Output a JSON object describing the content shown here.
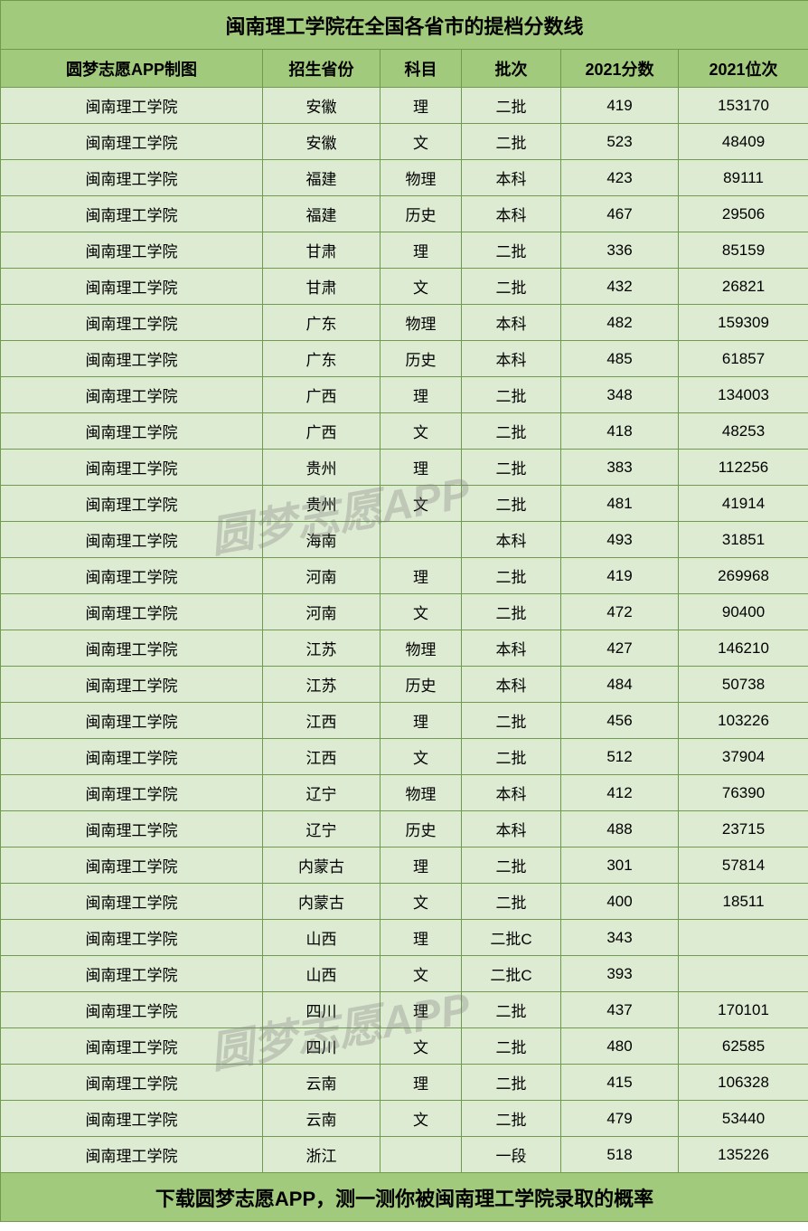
{
  "title": "闽南理工学院在全国各省市的提档分数线",
  "footer": "下载圆梦志愿APP，测一测你被闽南理工学院录取的概率",
  "watermark": "圆梦志愿APP",
  "colors": {
    "header_bg": "#a1ca7c",
    "row_bg": "#deebd3",
    "border": "#6f9b4f",
    "text": "#000000",
    "watermark": "rgba(120,120,120,0.30)"
  },
  "columns": [
    "圆梦志愿APP制图",
    "招生省份",
    "科目",
    "批次",
    "2021分数",
    "2021位次"
  ],
  "rows": [
    [
      "闽南理工学院",
      "安徽",
      "理",
      "二批",
      "419",
      "153170"
    ],
    [
      "闽南理工学院",
      "安徽",
      "文",
      "二批",
      "523",
      "48409"
    ],
    [
      "闽南理工学院",
      "福建",
      "物理",
      "本科",
      "423",
      "89111"
    ],
    [
      "闽南理工学院",
      "福建",
      "历史",
      "本科",
      "467",
      "29506"
    ],
    [
      "闽南理工学院",
      "甘肃",
      "理",
      "二批",
      "336",
      "85159"
    ],
    [
      "闽南理工学院",
      "甘肃",
      "文",
      "二批",
      "432",
      "26821"
    ],
    [
      "闽南理工学院",
      "广东",
      "物理",
      "本科",
      "482",
      "159309"
    ],
    [
      "闽南理工学院",
      "广东",
      "历史",
      "本科",
      "485",
      "61857"
    ],
    [
      "闽南理工学院",
      "广西",
      "理",
      "二批",
      "348",
      "134003"
    ],
    [
      "闽南理工学院",
      "广西",
      "文",
      "二批",
      "418",
      "48253"
    ],
    [
      "闽南理工学院",
      "贵州",
      "理",
      "二批",
      "383",
      "112256"
    ],
    [
      "闽南理工学院",
      "贵州",
      "文",
      "二批",
      "481",
      "41914"
    ],
    [
      "闽南理工学院",
      "海南",
      "",
      "本科",
      "493",
      "31851"
    ],
    [
      "闽南理工学院",
      "河南",
      "理",
      "二批",
      "419",
      "269968"
    ],
    [
      "闽南理工学院",
      "河南",
      "文",
      "二批",
      "472",
      "90400"
    ],
    [
      "闽南理工学院",
      "江苏",
      "物理",
      "本科",
      "427",
      "146210"
    ],
    [
      "闽南理工学院",
      "江苏",
      "历史",
      "本科",
      "484",
      "50738"
    ],
    [
      "闽南理工学院",
      "江西",
      "理",
      "二批",
      "456",
      "103226"
    ],
    [
      "闽南理工学院",
      "江西",
      "文",
      "二批",
      "512",
      "37904"
    ],
    [
      "闽南理工学院",
      "辽宁",
      "物理",
      "本科",
      "412",
      "76390"
    ],
    [
      "闽南理工学院",
      "辽宁",
      "历史",
      "本科",
      "488",
      "23715"
    ],
    [
      "闽南理工学院",
      "内蒙古",
      "理",
      "二批",
      "301",
      "57814"
    ],
    [
      "闽南理工学院",
      "内蒙古",
      "文",
      "二批",
      "400",
      "18511"
    ],
    [
      "闽南理工学院",
      "山西",
      "理",
      "二批C",
      "343",
      ""
    ],
    [
      "闽南理工学院",
      "山西",
      "文",
      "二批C",
      "393",
      ""
    ],
    [
      "闽南理工学院",
      "四川",
      "理",
      "二批",
      "437",
      "170101"
    ],
    [
      "闽南理工学院",
      "四川",
      "文",
      "二批",
      "480",
      "62585"
    ],
    [
      "闽南理工学院",
      "云南",
      "理",
      "二批",
      "415",
      "106328"
    ],
    [
      "闽南理工学院",
      "云南",
      "文",
      "二批",
      "479",
      "53440"
    ],
    [
      "闽南理工学院",
      "浙江",
      "",
      "一段",
      "518",
      "135226"
    ]
  ]
}
